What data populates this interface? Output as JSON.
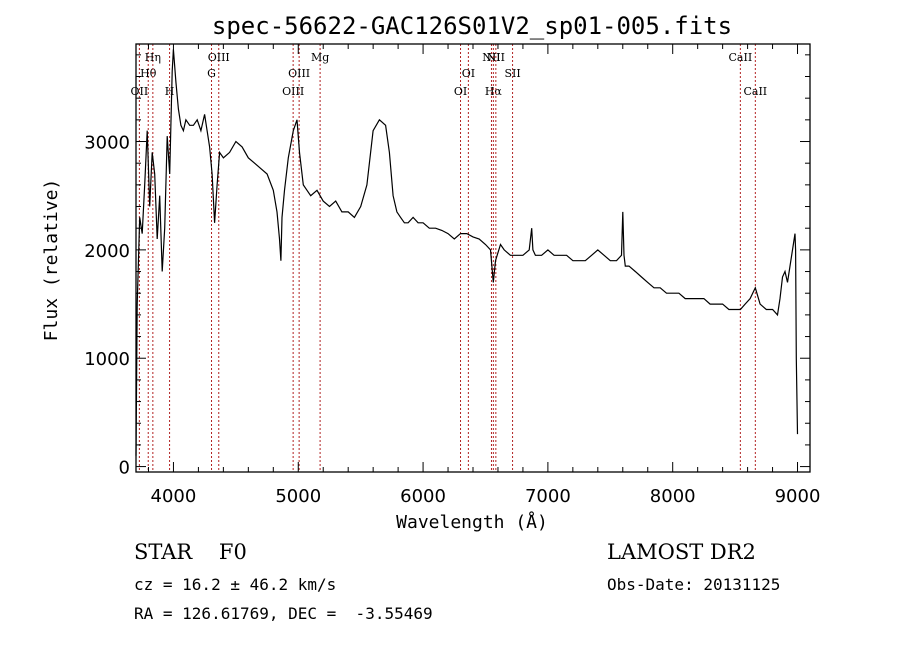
{
  "chart_data": {
    "type": "line",
    "title": "spec-56622-GAC126S01V2_sp01-005.fits",
    "xlabel": "Wavelength (Å)",
    "ylabel": "Flux (relative)",
    "xlim": [
      3700,
      9100
    ],
    "ylim": [
      -50,
      3900
    ],
    "x_ticks": [
      4000,
      5000,
      6000,
      7000,
      8000,
      9000
    ],
    "y_ticks": [
      0,
      1000,
      2000,
      3000
    ],
    "grid": false,
    "series": [
      {
        "x": [
          3700,
          3710,
          3730,
          3750,
          3770,
          3790,
          3810,
          3830,
          3850,
          3870,
          3890,
          3910,
          3930,
          3950,
          3970,
          3990,
          4000,
          4020,
          4040,
          4060,
          4080,
          4100,
          4130,
          4160,
          4190,
          4220,
          4250,
          4270,
          4290,
          4310,
          4330,
          4350,
          4370,
          4400,
          4450,
          4500,
          4550,
          4600,
          4650,
          4700,
          4750,
          4800,
          4830,
          4850,
          4861,
          4870,
          4890,
          4920,
          4960,
          4990,
          5010,
          5040,
          5070,
          5100,
          5150,
          5200,
          5250,
          5300,
          5350,
          5400,
          5450,
          5500,
          5550,
          5600,
          5650,
          5700,
          5730,
          5760,
          5790,
          5820,
          5850,
          5880,
          5920,
          5960,
          6000,
          6050,
          6100,
          6150,
          6200,
          6250,
          6300,
          6350,
          6400,
          6450,
          6500,
          6540,
          6563,
          6580,
          6620,
          6650,
          6700,
          6750,
          6800,
          6850,
          6870,
          6880,
          6900,
          6950,
          7000,
          7050,
          7100,
          7150,
          7200,
          7250,
          7300,
          7350,
          7400,
          7450,
          7500,
          7550,
          7590,
          7600,
          7610,
          7620,
          7650,
          7700,
          7750,
          7800,
          7850,
          7900,
          7950,
          8000,
          8050,
          8100,
          8150,
          8200,
          8250,
          8300,
          8350,
          8400,
          8450,
          8500,
          8542,
          8580,
          8620,
          8662,
          8700,
          8750,
          8800,
          8840,
          8860,
          8880,
          8900,
          8920,
          8940,
          8960,
          8980,
          8985,
          8990,
          9000
        ],
        "y": [
          100,
          1500,
          2300,
          2150,
          2600,
          3100,
          2400,
          2900,
          2700,
          2100,
          2500,
          1800,
          2200,
          3050,
          2700,
          3650,
          3850,
          3550,
          3300,
          3150,
          3100,
          3200,
          3150,
          3150,
          3200,
          3100,
          3250,
          3100,
          2950,
          2700,
          2250,
          2600,
          2900,
          2850,
          2900,
          3000,
          2950,
          2850,
          2800,
          2750,
          2700,
          2550,
          2350,
          2100,
          1900,
          2300,
          2550,
          2850,
          3100,
          3200,
          2900,
          2600,
          2550,
          2500,
          2550,
          2450,
          2400,
          2450,
          2350,
          2350,
          2300,
          2400,
          2600,
          3100,
          3200,
          3150,
          2900,
          2500,
          2350,
          2300,
          2250,
          2250,
          2300,
          2250,
          2250,
          2200,
          2200,
          2180,
          2150,
          2100,
          2150,
          2150,
          2120,
          2100,
          2050,
          2000,
          1700,
          1900,
          2050,
          2000,
          1950,
          1950,
          1950,
          2000,
          2200,
          2000,
          1950,
          1950,
          2000,
          1950,
          1950,
          1950,
          1900,
          1900,
          1900,
          1950,
          2000,
          1950,
          1900,
          1900,
          1950,
          2350,
          1950,
          1850,
          1850,
          1800,
          1750,
          1700,
          1650,
          1650,
          1600,
          1600,
          1600,
          1550,
          1550,
          1550,
          1550,
          1500,
          1500,
          1500,
          1450,
          1450,
          1450,
          1500,
          1550,
          1650,
          1500,
          1450,
          1450,
          1400,
          1550,
          1750,
          1800,
          1700,
          1850,
          2000,
          2150,
          2000,
          1000,
          300
        ]
      }
    ],
    "spectral_lines": [
      {
        "label": "OII",
        "x": 3727,
        "row": 3
      },
      {
        "label": "Hθ",
        "x": 3798,
        "row": 2
      },
      {
        "label": "Hη",
        "x": 3835,
        "row": 1
      },
      {
        "label": "H",
        "x": 3969,
        "row": 3
      },
      {
        "label": "G",
        "x": 4305,
        "row": 2
      },
      {
        "label": "OIII",
        "x": 4363,
        "row": 1
      },
      {
        "label": "OIII",
        "x": 4959,
        "row": 3
      },
      {
        "label": "OIII",
        "x": 5007,
        "row": 2
      },
      {
        "label": "Mg",
        "x": 5175,
        "row": 1
      },
      {
        "label": "OI",
        "x": 6300,
        "row": 3
      },
      {
        "label": "OI",
        "x": 6363,
        "row": 2
      },
      {
        "label": "NII",
        "x": 6548,
        "row": 1
      },
      {
        "label": "Hα",
        "x": 6563,
        "row": 3
      },
      {
        "label": "NII",
        "x": 6583,
        "row": 1
      },
      {
        "label": "SII",
        "x": 6717,
        "row": 2
      },
      {
        "label": "CaII",
        "x": 8542,
        "row": 1
      },
      {
        "label": "CaII",
        "x": 8662,
        "row": 3
      }
    ],
    "line_color": "#000000",
    "marker_color": "#b22222"
  },
  "info": {
    "class_line": "STAR    F0",
    "survey": "LAMOST DR2",
    "cz": "cz = 16.2 ± 46.2 km/s",
    "obs_date": "Obs-Date: 20131125",
    "radec": "RA = 126.61769, DEC =  -3.55469"
  }
}
